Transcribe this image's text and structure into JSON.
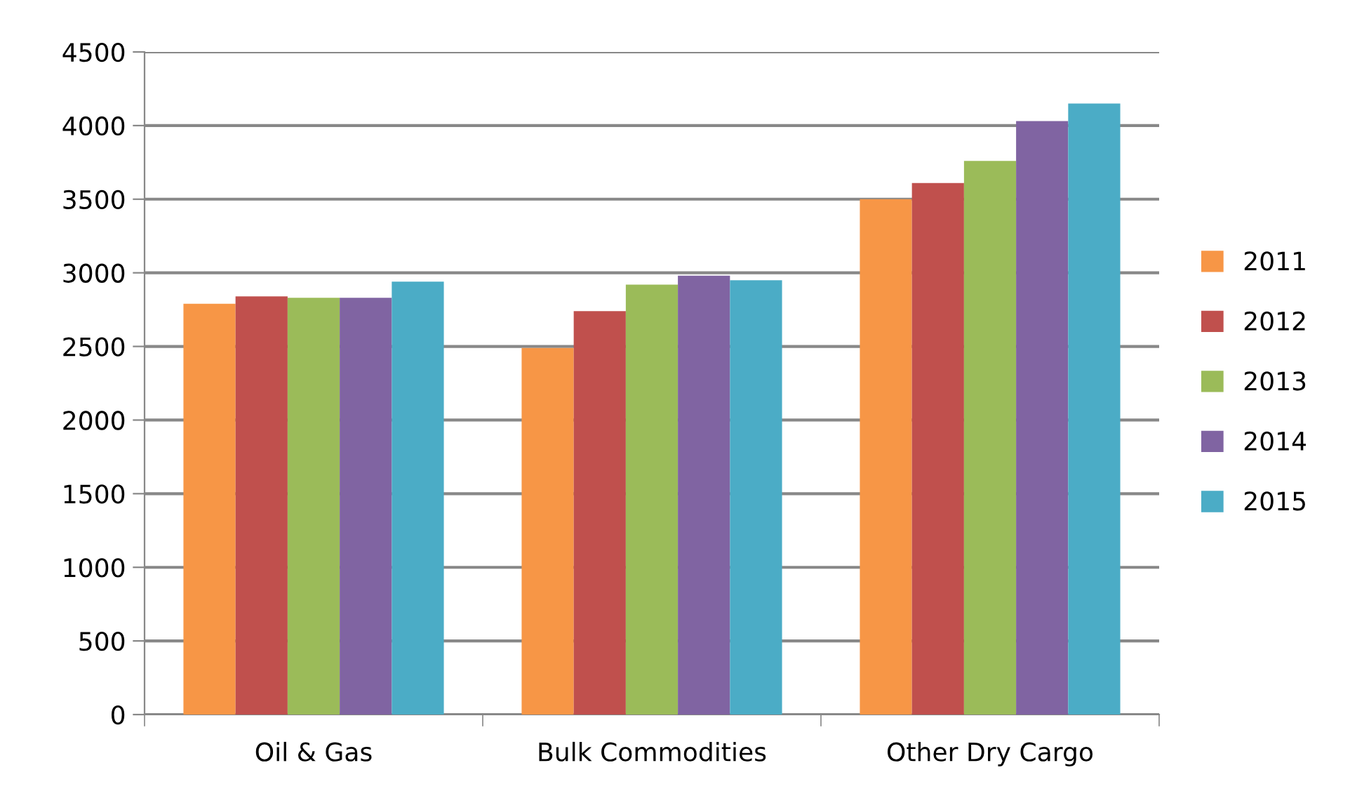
{
  "chart_data": {
    "type": "bar",
    "categories": [
      "Oil & Gas",
      "Bulk Commodities",
      "Other Dry Cargo"
    ],
    "series": [
      {
        "name": "2011",
        "color": "#f79646",
        "values": [
          2790,
          2490,
          3500
        ]
      },
      {
        "name": "2012",
        "color": "#c0504d",
        "values": [
          2840,
          2740,
          3610
        ]
      },
      {
        "name": "2013",
        "color": "#9bbb59",
        "values": [
          2830,
          2920,
          3760
        ]
      },
      {
        "name": "2014",
        "color": "#8064a2",
        "values": [
          2830,
          2980,
          4030
        ]
      },
      {
        "name": "2015",
        "color": "#4bacc6",
        "values": [
          2940,
          2950,
          4150
        ]
      }
    ],
    "ylim": [
      0,
      4500
    ],
    "yticks": [
      0,
      500,
      1000,
      1500,
      2000,
      2500,
      3000,
      3500,
      4000,
      4500
    ],
    "grid": "y",
    "legend": "right"
  }
}
